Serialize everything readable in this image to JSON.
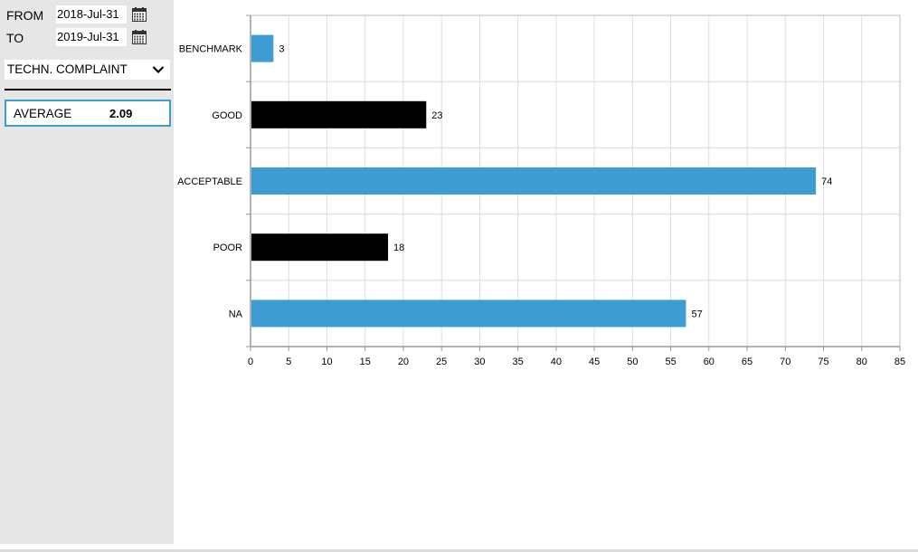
{
  "filters": {
    "from_label": "FROM",
    "from_value": "2018-Jul-31",
    "to_label": "TO",
    "to_value": "2019-Jul-31",
    "category_value": "TECHN. COMPLAINT"
  },
  "summary": {
    "average_label": "AVERAGE",
    "average_value": "2.09"
  },
  "colors": {
    "accent": "#3d9dd2",
    "bar_blue": "#3d9dd2",
    "bar_black": "#000000",
    "sidebar_bg": "#e6e6e6",
    "grid": "#dcdcdc"
  },
  "chart_data": {
    "type": "bar",
    "orientation": "horizontal",
    "categories": [
      "BENCHMARK",
      "GOOD",
      "ACCEPTABLE",
      "POOR",
      "NA"
    ],
    "values": [
      3,
      23,
      74,
      18,
      57
    ],
    "bar_colors": [
      "#3d9dd2",
      "#000000",
      "#3d9dd2",
      "#000000",
      "#3d9dd2"
    ],
    "data_labels": [
      "3",
      "23",
      "74",
      "18",
      "57"
    ],
    "xlim": [
      0,
      85
    ],
    "xticks": [
      "0",
      "5",
      "10",
      "15",
      "20",
      "25",
      "30",
      "35",
      "40",
      "45",
      "50",
      "55",
      "60",
      "65",
      "70",
      "75",
      "80",
      "85"
    ],
    "grid": true,
    "legend": "none"
  }
}
